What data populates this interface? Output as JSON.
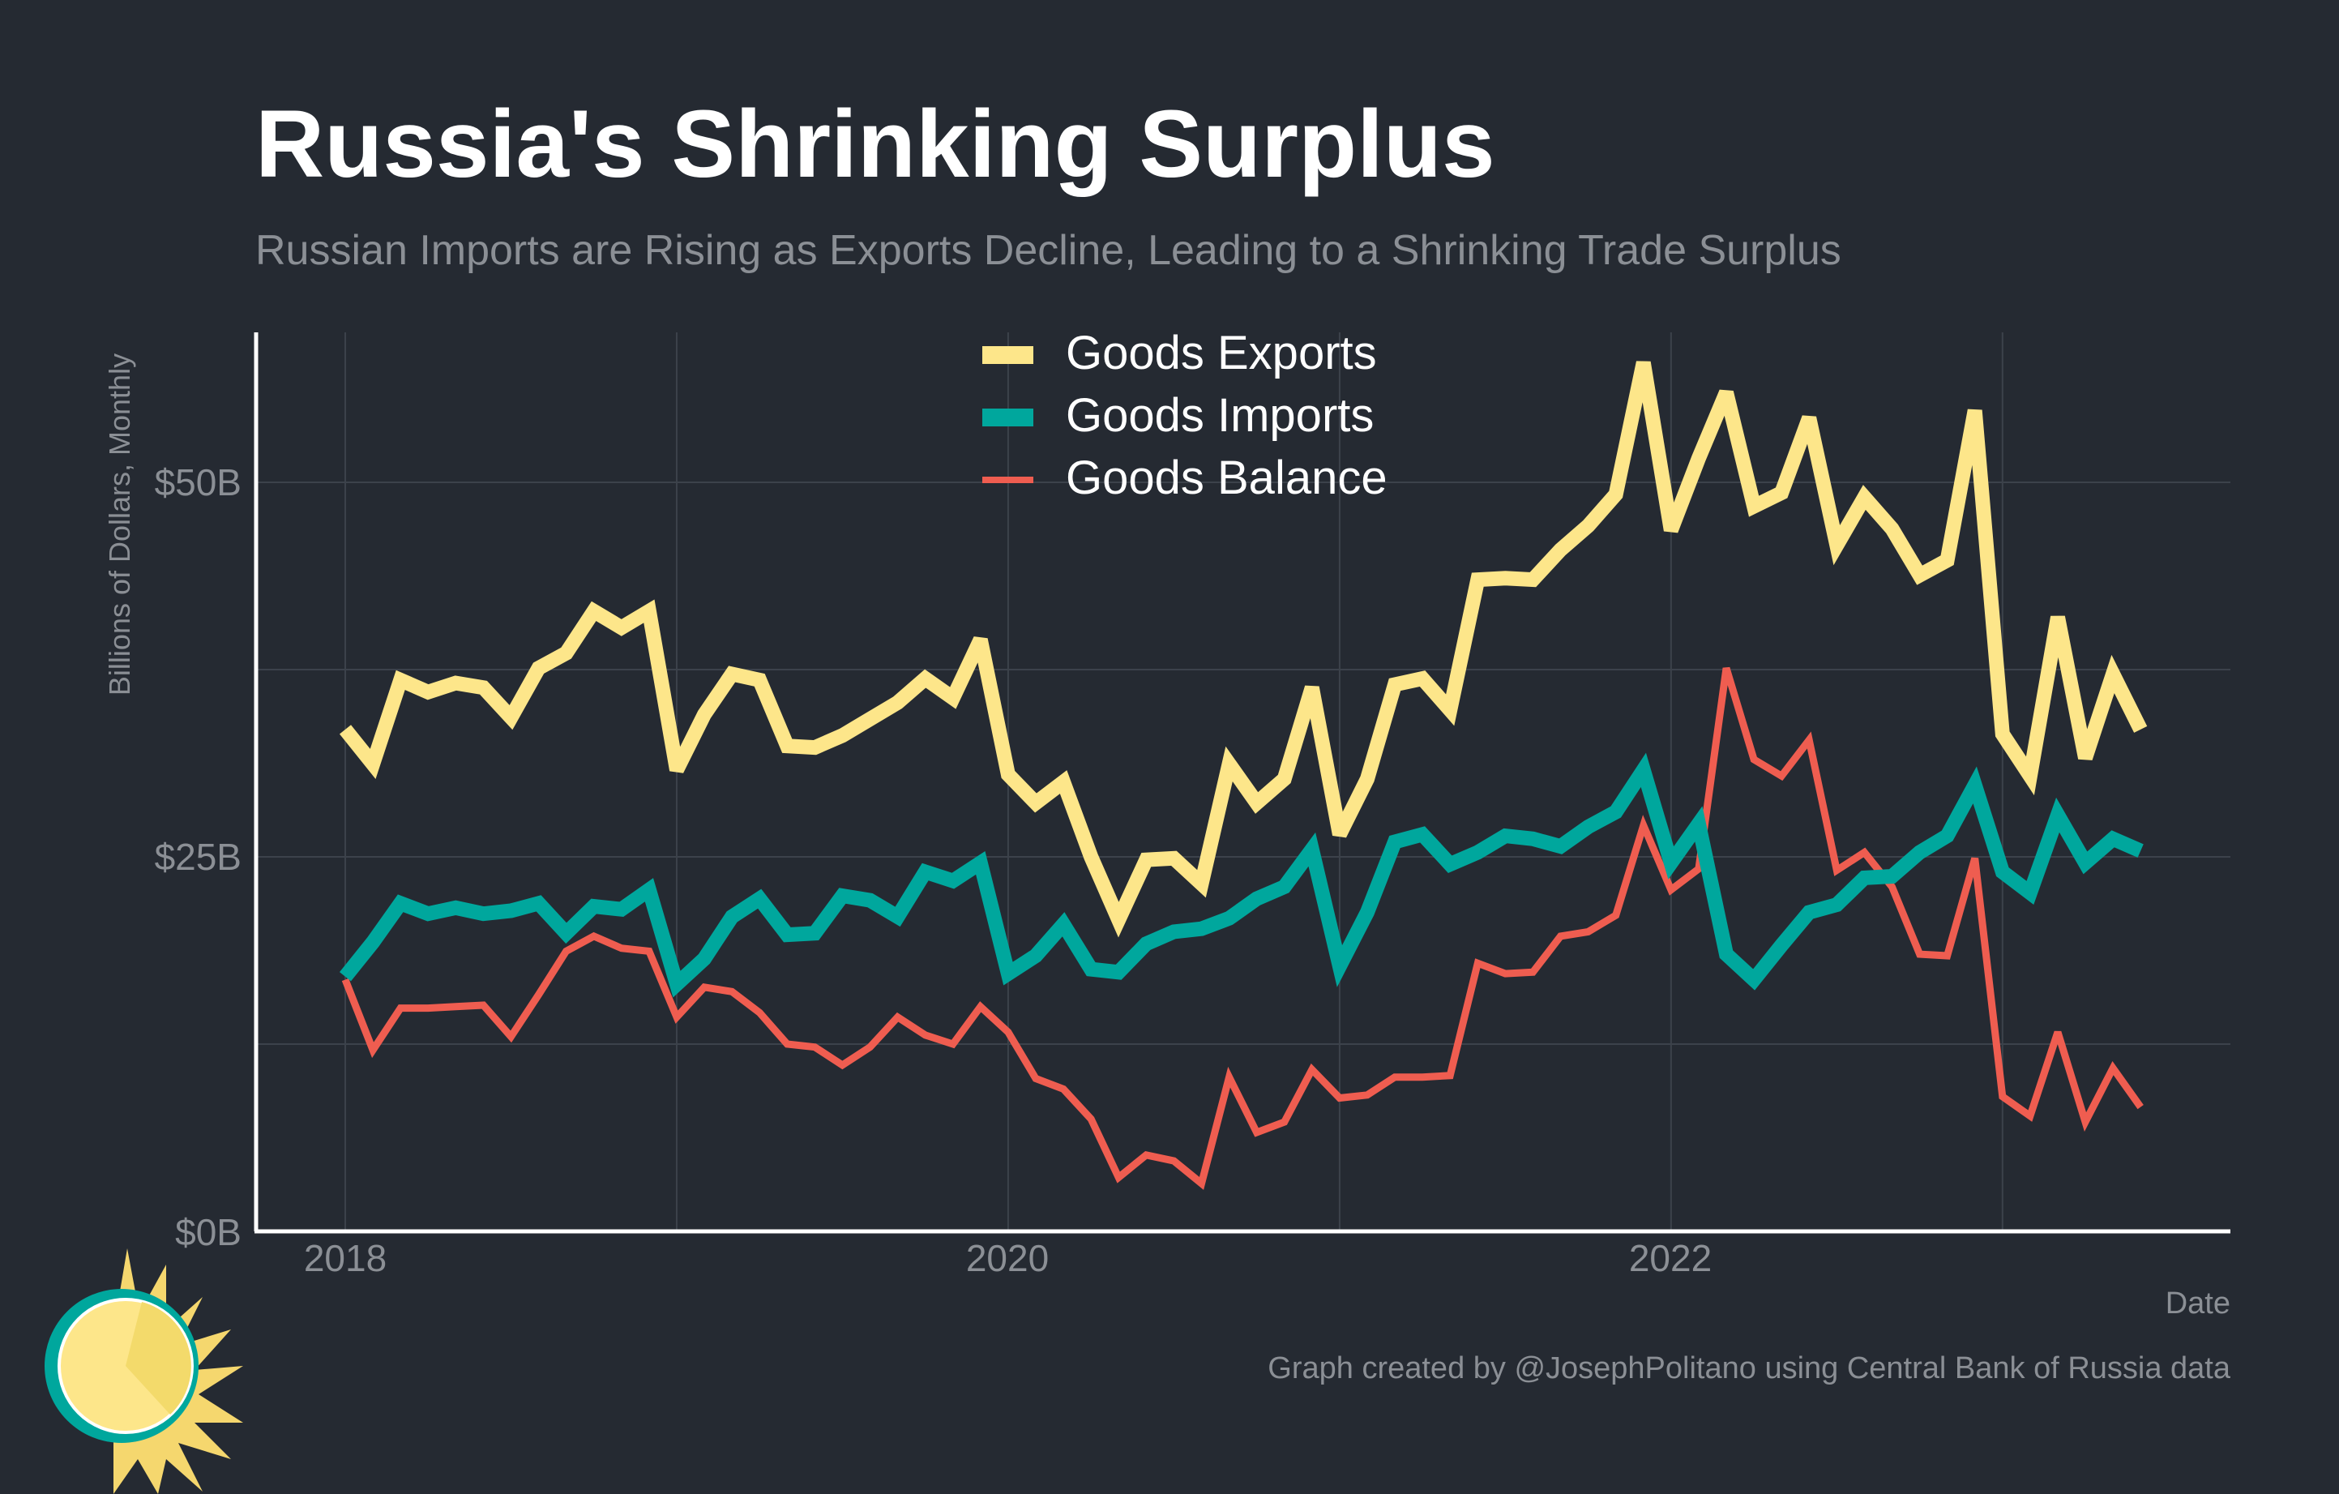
{
  "chart_data": {
    "type": "line",
    "title": "Russia's Shrinking Surplus",
    "subtitle": "Russian Imports are Rising as Exports Decline, Leading to a Shrinking Trade Surplus",
    "xlabel": "Date",
    "ylabel": "Billions of Dollars, Monthly",
    "caption": "Graph created by @JosephPolitano using Central Bank of Russia data",
    "x_start": "2018-01",
    "x_ticks": [
      "2018",
      "2020",
      "2022"
    ],
    "y_ticks": [
      "$0B",
      "$25B",
      "$50B"
    ],
    "ylim": [
      0,
      60
    ],
    "grid": true,
    "legend_position": "top-center",
    "series": [
      {
        "name": "Goods Exports",
        "color": "#fde68a",
        "values": [
          33.5,
          31.2,
          36.8,
          36.0,
          36.6,
          36.3,
          34.3,
          37.6,
          38.6,
          41.4,
          40.3,
          41.4,
          30.8,
          34.5,
          37.2,
          36.8,
          32.4,
          32.3,
          33.1,
          34.2,
          35.3,
          36.9,
          35.6,
          39.5,
          30.5,
          28.6,
          30.0,
          25.0,
          20.8,
          24.8,
          24.9,
          23.2,
          31.2,
          28.6,
          30.2,
          36.3,
          26.5,
          30.2,
          36.5,
          36.9,
          34.8,
          43.5,
          43.6,
          43.5,
          45.5,
          47.1,
          49.2,
          58.0,
          46.8,
          51.6,
          56.0,
          48.4,
          49.3,
          54.3,
          45.8,
          49.0,
          46.9,
          43.8,
          44.8,
          54.8,
          33.2,
          30.4,
          41.0,
          31.6,
          37.2,
          33.5
        ]
      },
      {
        "name": "Goods Imports",
        "color": "#00a79d",
        "values": [
          17.0,
          19.3,
          21.9,
          21.2,
          21.6,
          21.2,
          21.4,
          21.9,
          19.9,
          21.7,
          21.5,
          22.8,
          16.5,
          18.2,
          21.0,
          22.2,
          19.8,
          19.9,
          22.4,
          22.1,
          21.0,
          24.0,
          23.4,
          24.6,
          17.2,
          18.4,
          20.5,
          17.5,
          17.3,
          19.2,
          20.0,
          20.2,
          20.9,
          22.2,
          23.0,
          25.5,
          17.7,
          21.3,
          26.0,
          26.5,
          24.5,
          25.3,
          26.4,
          26.2,
          25.7,
          27.0,
          28.0,
          30.8,
          24.6,
          27.2,
          18.5,
          16.8,
          19.1,
          21.3,
          21.8,
          23.6,
          23.7,
          25.3,
          26.4,
          29.8,
          24.0,
          22.6,
          27.8,
          24.6,
          26.2,
          25.4
        ]
      },
      {
        "name": "Goods Balance",
        "color": "#ef5d50",
        "values": [
          16.8,
          12.1,
          14.9,
          14.9,
          15.0,
          15.1,
          13.0,
          15.8,
          18.7,
          19.7,
          18.9,
          18.7,
          14.3,
          16.3,
          16.0,
          14.6,
          12.5,
          12.3,
          11.1,
          12.3,
          14.3,
          13.1,
          12.5,
          15.0,
          13.3,
          10.2,
          9.5,
          7.5,
          3.6,
          5.1,
          4.7,
          3.2,
          10.3,
          6.6,
          7.3,
          10.8,
          8.9,
          9.1,
          10.3,
          10.3,
          10.4,
          17.9,
          17.2,
          17.3,
          19.7,
          20.0,
          21.1,
          27.1,
          22.8,
          24.2,
          37.6,
          31.5,
          30.4,
          32.8,
          24.1,
          25.3,
          23.0,
          18.5,
          18.4,
          24.9,
          9.0,
          7.7,
          13.3,
          7.3,
          10.9,
          8.3
        ]
      }
    ]
  }
}
